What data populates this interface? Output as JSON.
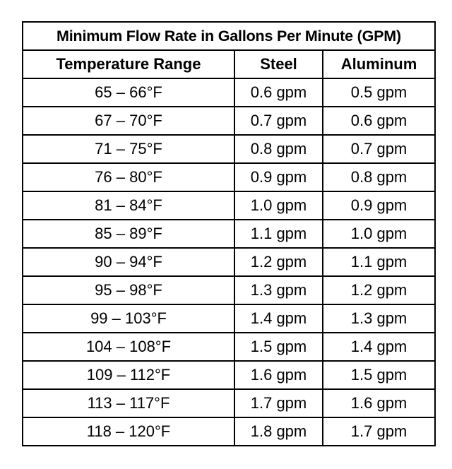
{
  "table": {
    "title": "Minimum Flow Rate in Gallons Per Minute (GPM)",
    "headers": [
      "Temperature Range",
      "Steel",
      "Aluminum"
    ],
    "rows": [
      [
        "65 – 66°F",
        "0.6 gpm",
        "0.5 gpm"
      ],
      [
        "67 – 70°F",
        "0.7 gpm",
        "0.6 gpm"
      ],
      [
        "71 – 75°F",
        "0.8 gpm",
        "0.7 gpm"
      ],
      [
        "76 – 80°F",
        "0.9 gpm",
        "0.8 gpm"
      ],
      [
        "81 – 84°F",
        "1.0 gpm",
        "0.9 gpm"
      ],
      [
        "85 – 89°F",
        "1.1 gpm",
        "1.0 gpm"
      ],
      [
        "90 – 94°F",
        "1.2 gpm",
        "1.1 gpm"
      ],
      [
        "95 – 98°F",
        "1.3 gpm",
        "1.2 gpm"
      ],
      [
        "99 – 103°F",
        "1.4 gpm",
        "1.3 gpm"
      ],
      [
        "104 – 108°F",
        "1.5 gpm",
        "1.4 gpm"
      ],
      [
        "109 – 112°F",
        "1.6 gpm",
        "1.5 gpm"
      ],
      [
        "113 – 117°F",
        "1.7 gpm",
        "1.6 gpm"
      ],
      [
        "118 – 120°F",
        "1.8 gpm",
        "1.7 gpm"
      ]
    ]
  }
}
